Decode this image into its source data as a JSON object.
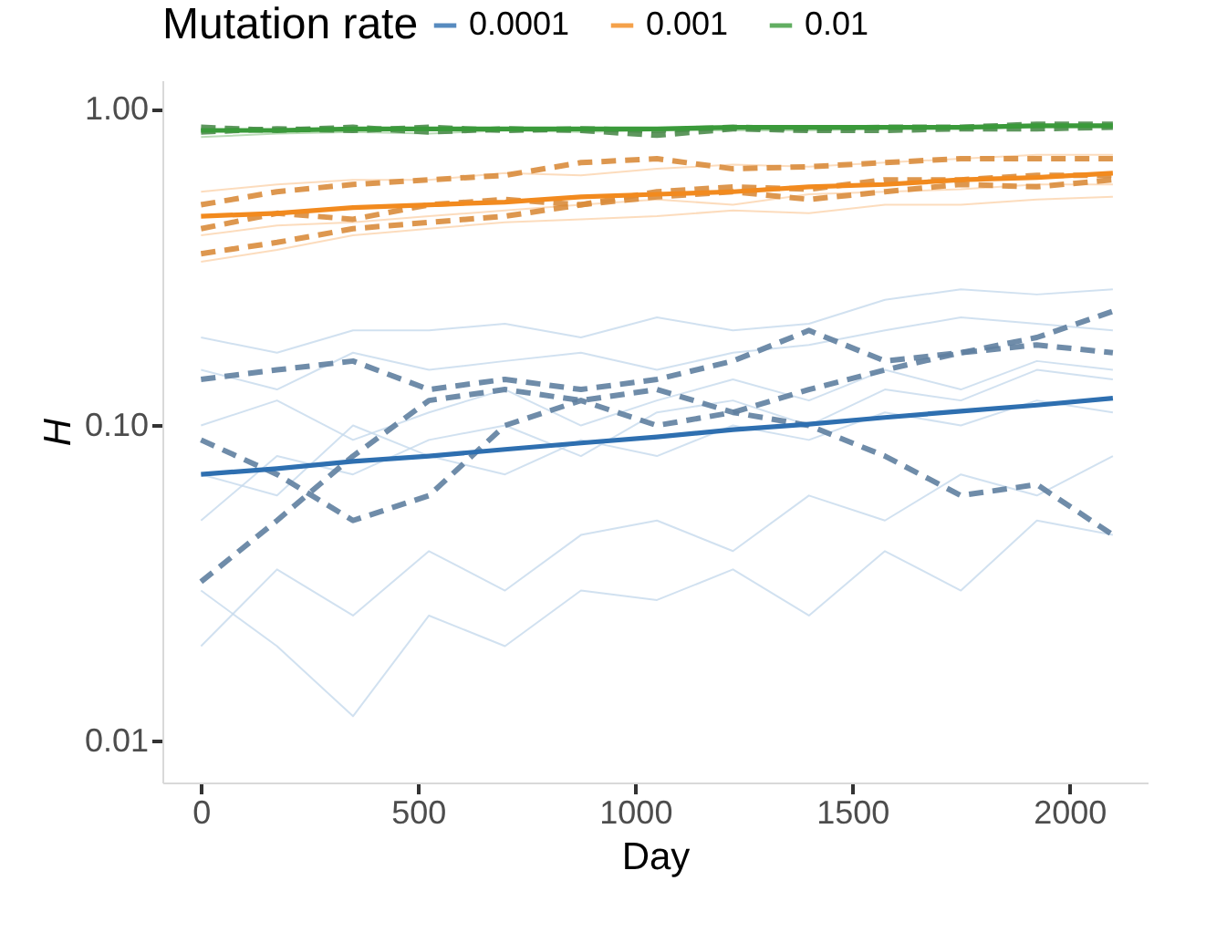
{
  "chart_data": {
    "type": "line",
    "xlabel": "Day",
    "ylabel": "H",
    "legend_title": "Mutation rate",
    "legend": "top",
    "grid": false,
    "log": "y",
    "marker": "none",
    "xlim": [
      -89,
      2180
    ],
    "xticks": [
      0,
      500,
      1000,
      1500,
      2000
    ],
    "ylim": [
      0.0074,
      1.24
    ],
    "yticks": [
      {
        "value": 0.01,
        "label": "0.01"
      },
      {
        "value": 0.1,
        "label": "0.10"
      },
      {
        "value": 1,
        "label": "1.00"
      }
    ],
    "x": [
      0,
      175,
      350,
      525,
      700,
      875,
      1050,
      1225,
      1400,
      1575,
      1750,
      1925,
      2100
    ],
    "series": [
      {
        "color": "#c6d9ec",
        "values": [
          0.19,
          0.17,
          0.2,
          0.2,
          0.21,
          0.19,
          0.22,
          0.2,
          0.21,
          0.25,
          0.27,
          0.26,
          0.27
        ]
      },
      {
        "color": "#c6d9ec",
        "values": [
          0.05,
          0.08,
          0.07,
          0.09,
          0.1,
          0.08,
          0.11,
          0.12,
          0.1,
          0.13,
          0.12,
          0.15,
          0.14
        ]
      },
      {
        "color": "#c6d9ec",
        "values": [
          0.02,
          0.035,
          0.025,
          0.04,
          0.03,
          0.045,
          0.05,
          0.04,
          0.06,
          0.05,
          0.07,
          0.06,
          0.08
        ]
      },
      {
        "color": "#c6d9ec",
        "values": [
          0.03,
          0.02,
          0.012,
          0.025,
          0.02,
          0.03,
          0.028,
          0.035,
          0.025,
          0.04,
          0.03,
          0.05,
          0.045
        ]
      },
      {
        "color": "#c6d9ec",
        "values": [
          0.1,
          0.12,
          0.09,
          0.11,
          0.13,
          0.1,
          0.12,
          0.14,
          0.12,
          0.15,
          0.13,
          0.16,
          0.15
        ]
      },
      {
        "color": "#c6d9ec",
        "values": [
          0.07,
          0.06,
          0.1,
          0.08,
          0.07,
          0.09,
          0.08,
          0.1,
          0.09,
          0.11,
          0.1,
          0.12,
          0.11
        ]
      },
      {
        "color": "#c6d9ec",
        "values": [
          0.15,
          0.13,
          0.17,
          0.15,
          0.16,
          0.17,
          0.15,
          0.17,
          0.18,
          0.2,
          0.22,
          0.21,
          0.2
        ]
      },
      {
        "color": "#fbd3ad",
        "values": [
          0.33,
          0.36,
          0.4,
          0.42,
          0.44,
          0.45,
          0.46,
          0.48,
          0.47,
          0.5,
          0.5,
          0.52,
          0.53
        ]
      },
      {
        "color": "#fbd3ad",
        "values": [
          0.55,
          0.58,
          0.6,
          0.6,
          0.63,
          0.62,
          0.65,
          0.67,
          0.66,
          0.68,
          0.7,
          0.72,
          0.72
        ]
      },
      {
        "color": "#fbd3ad",
        "values": [
          0.4,
          0.43,
          0.44,
          0.46,
          0.48,
          0.5,
          0.52,
          0.5,
          0.54,
          0.55,
          0.56,
          0.58,
          0.58
        ]
      },
      {
        "color": "#a9d3a5",
        "values": [
          0.82,
          0.84,
          0.85,
          0.84,
          0.86,
          0.85,
          0.86,
          0.86,
          0.86,
          0.87,
          0.87,
          0.88,
          0.88
        ]
      },
      {
        "color": "#5f7fa0",
        "line_style": "dashed",
        "values": [
          0.14,
          0.15,
          0.16,
          0.13,
          0.14,
          0.13,
          0.14,
          0.16,
          0.2,
          0.16,
          0.17,
          0.19,
          0.23
        ]
      },
      {
        "color": "#5f7fa0",
        "line_style": "dashed",
        "values": [
          0.032,
          0.05,
          0.08,
          0.12,
          0.13,
          0.12,
          0.13,
          0.11,
          0.1,
          0.08,
          0.06,
          0.065,
          0.045
        ]
      },
      {
        "color": "#5f7fa0",
        "line_style": "dashed",
        "values": [
          0.09,
          0.07,
          0.05,
          0.06,
          0.1,
          0.12,
          0.1,
          0.11,
          0.13,
          0.15,
          0.17,
          0.18,
          0.17
        ]
      },
      {
        "color": "#d98c3c",
        "line_style": "dashed",
        "values": [
          0.5,
          0.55,
          0.58,
          0.6,
          0.62,
          0.68,
          0.7,
          0.65,
          0.66,
          0.68,
          0.7,
          0.7,
          0.7
        ]
      },
      {
        "color": "#d98c3c",
        "line_style": "dashed",
        "values": [
          0.35,
          0.38,
          0.42,
          0.44,
          0.46,
          0.5,
          0.55,
          0.57,
          0.56,
          0.6,
          0.6,
          0.62,
          0.62
        ]
      },
      {
        "color": "#d98c3c",
        "line_style": "dashed",
        "values": [
          0.42,
          0.47,
          0.45,
          0.5,
          0.52,
          0.5,
          0.53,
          0.55,
          0.52,
          0.55,
          0.58,
          0.57,
          0.6
        ]
      },
      {
        "color": "#4c8c4c",
        "line_style": "dashed",
        "values": [
          0.85,
          0.87,
          0.86,
          0.88,
          0.86,
          0.87,
          0.86,
          0.88,
          0.87,
          0.88,
          0.88,
          0.9,
          0.9
        ]
      },
      {
        "color": "#4c8c4c",
        "line_style": "dashed",
        "values": [
          0.88,
          0.86,
          0.88,
          0.85,
          0.87,
          0.86,
          0.83,
          0.87,
          0.86,
          0.86,
          0.87,
          0.87,
          0.88
        ]
      },
      {
        "name": "0.0001",
        "color": "#2e6fb0",
        "values": [
          0.07,
          0.073,
          0.077,
          0.08,
          0.084,
          0.088,
          0.092,
          0.097,
          0.101,
          0.106,
          0.111,
          0.116,
          0.122
        ]
      },
      {
        "name": "0.001",
        "color": "#f28a1e",
        "values": [
          0.46,
          0.47,
          0.49,
          0.5,
          0.51,
          0.53,
          0.54,
          0.55,
          0.57,
          0.58,
          0.6,
          0.61,
          0.63
        ]
      },
      {
        "name": "0.01",
        "color": "#3a9a3a",
        "values": [
          0.86,
          0.86,
          0.87,
          0.87,
          0.87,
          0.87,
          0.87,
          0.88,
          0.88,
          0.88,
          0.88,
          0.89,
          0.89
        ]
      }
    ]
  }
}
